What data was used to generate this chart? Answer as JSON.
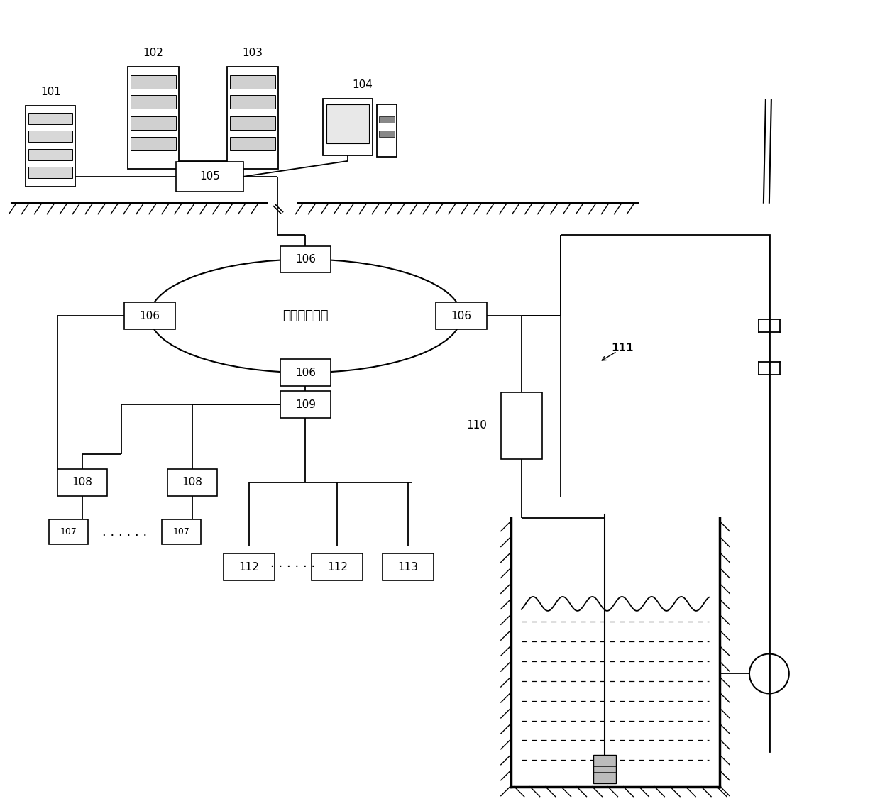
{
  "bg_color": "#ffffff",
  "lc": "#000000",
  "tc": "#000000",
  "ethernet_label": "矿用以太环网",
  "figw": 12.4,
  "figh": 11.43,
  "dpi": 100
}
